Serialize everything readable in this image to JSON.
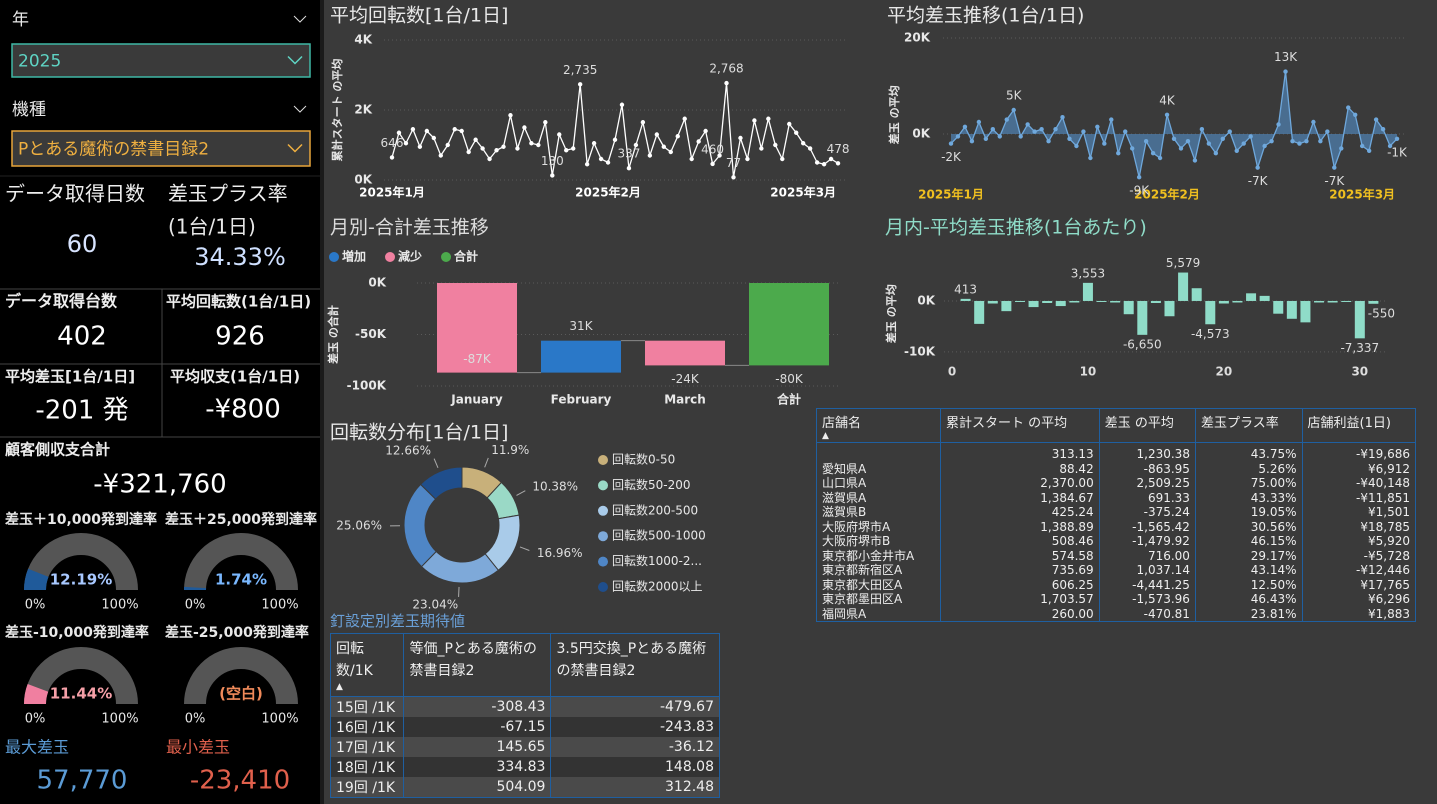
{
  "left_panel": {
    "slicers": [
      {
        "label": "年",
        "value": "2025"
      },
      {
        "label": "機種",
        "value": "Pとある魔術の禁書目録2"
      }
    ],
    "cards": [
      {
        "label": "データ取得日数",
        "value": "60"
      },
      {
        "label": "差玉プラス率",
        "sublabel": "(1台/1日)",
        "value": "34.33%"
      },
      {
        "label": "データ取得台数",
        "value": "402"
      },
      {
        "label": "平均回転数(1台/1日)",
        "value": "926"
      },
      {
        "label": "平均差玉[1台/1日]",
        "value": "-201 発"
      },
      {
        "label": "平均収支(1台/1日)",
        "value": "-¥800"
      },
      {
        "label": "顧客側収支合計",
        "value": "-¥321,760"
      },
      {
        "label": "最大差玉",
        "value": "57,770"
      },
      {
        "label": "最小差玉",
        "value": "-23,410"
      }
    ],
    "gauges": [
      {
        "label": "差玉＋10,000発到達率",
        "value": 12.19,
        "value_label": "12.19%",
        "min": {
          "value": 0,
          "label": "0%"
        },
        "max": {
          "value": 100,
          "label": "100%"
        },
        "color": "#1f5a9a"
      },
      {
        "label": "差玉＋25,000発到達率",
        "value": 1.74,
        "value_label": "1.74%",
        "min": {
          "value": 0,
          "label": "0%"
        },
        "max": {
          "value": 100,
          "label": "100%"
        },
        "color": "#1f5a9a"
      },
      {
        "label": "差玉-10,000発到達率",
        "value": 11.44,
        "value_label": "11.44%",
        "min": {
          "value": 0,
          "label": "0%"
        },
        "max": {
          "value": 100,
          "label": "100%"
        },
        "color": "#f07fa0"
      },
      {
        "label": "差玉-25,000発到達率",
        "value": null,
        "value_label": "(空白)",
        "min": {
          "value": 0,
          "label": "0%"
        },
        "max": {
          "value": 100,
          "label": "100%"
        },
        "color": "#f07fa0"
      }
    ]
  },
  "chart_data": [
    {
      "type": "line",
      "title": "平均回転数[1台/1日]",
      "y_label": "累計スタート の平均",
      "color": "#ffffff",
      "grid": true,
      "x": [
        0,
        1,
        2,
        3,
        4,
        5,
        6,
        7,
        8,
        9,
        10,
        11,
        12,
        13,
        14,
        15,
        16,
        17,
        18,
        19,
        20,
        21,
        22,
        23,
        24,
        25,
        26,
        27,
        28,
        29,
        30,
        31,
        32,
        33,
        34,
        35,
        36,
        37,
        38,
        39,
        40,
        41,
        42,
        43,
        44,
        45,
        46,
        47,
        48,
        49,
        50,
        51,
        52,
        53,
        54,
        55,
        56,
        57,
        58,
        59,
        60,
        61,
        62,
        63,
        64
      ],
      "values": [
        646,
        1350,
        1050,
        1450,
        950,
        1400,
        1200,
        700,
        1000,
        1450,
        1400,
        800,
        1150,
        900,
        600,
        850,
        950,
        1850,
        900,
        1500,
        1050,
        1000,
        1650,
        130,
        1300,
        850,
        900,
        2735,
        450,
        1050,
        600,
        500,
        1150,
        2150,
        337,
        1000,
        1650,
        700,
        1300,
        950,
        800,
        1250,
        1750,
        600,
        1100,
        1400,
        460,
        700,
        2768,
        77,
        1200,
        600,
        1700,
        900,
        1750,
        1000,
        600,
        1600,
        1350,
        1050,
        900,
        500,
        450,
        600,
        478
      ],
      "value_labels": [
        "646",
        null,
        null,
        null,
        null,
        null,
        null,
        null,
        null,
        null,
        null,
        null,
        null,
        null,
        null,
        null,
        null,
        null,
        null,
        null,
        null,
        null,
        null,
        "130",
        null,
        null,
        null,
        "2,735",
        null,
        null,
        null,
        null,
        null,
        null,
        "337",
        null,
        null,
        null,
        null,
        null,
        null,
        null,
        null,
        null,
        null,
        null,
        "460",
        null,
        "2,768",
        "77",
        null,
        null,
        null,
        null,
        null,
        null,
        null,
        null,
        null,
        null,
        null,
        null,
        null,
        null,
        "478"
      ],
      "xlim": [
        0,
        65
      ],
      "xticks": [
        {
          "value": 0,
          "label": "2025年1月"
        },
        {
          "value": 31,
          "label": "2025年2月"
        },
        {
          "value": 59,
          "label": "2025年3月"
        }
      ],
      "ylim": [
        0,
        4000
      ],
      "yticks": [
        {
          "value": 0,
          "label": "0K"
        },
        {
          "value": 2000,
          "label": "2K"
        },
        {
          "value": 4000,
          "label": "4K"
        }
      ]
    },
    {
      "type": "area",
      "title": "平均差玉推移(1台/1日)",
      "y_label": "差玉 の平均",
      "color": "#6fa8dc",
      "fill_color": "#4f7fae",
      "grid": true,
      "x": [
        0,
        1,
        2,
        3,
        4,
        5,
        6,
        7,
        8,
        9,
        10,
        11,
        12,
        13,
        14,
        15,
        16,
        17,
        18,
        19,
        20,
        21,
        22,
        23,
        24,
        25,
        26,
        27,
        28,
        29,
        30,
        31,
        32,
        33,
        34,
        35,
        36,
        37,
        38,
        39,
        40,
        41,
        42,
        43,
        44,
        45,
        46,
        47,
        48,
        49,
        50,
        51,
        52,
        53,
        54,
        55,
        56,
        57,
        58,
        59,
        60,
        61,
        62,
        63,
        64
      ],
      "values": [
        -2000,
        -500,
        1500,
        -1500,
        2500,
        -1000,
        1000,
        -500,
        3000,
        5000,
        -500,
        2000,
        500,
        1000,
        -1500,
        1000,
        3500,
        -1000,
        -2500,
        500,
        -5000,
        1500,
        -2000,
        3000,
        -4000,
        500,
        -3000,
        -9000,
        -1500,
        -4000,
        -5000,
        4000,
        -1000,
        -3000,
        -1500,
        -5500,
        1000,
        -2000,
        -4000,
        -1000,
        500,
        -3500,
        -2000,
        -500,
        -7000,
        -2500,
        -1500,
        2000,
        13000,
        -1500,
        -2000,
        -1500,
        2500,
        -1500,
        500,
        -7000,
        -3000,
        5500,
        4000,
        -2500,
        -3500,
        3000,
        1000,
        -2500,
        -1000
      ],
      "value_labels": [
        "-2K",
        null,
        null,
        null,
        null,
        null,
        null,
        null,
        null,
        "5K",
        null,
        null,
        null,
        null,
        null,
        null,
        null,
        null,
        null,
        null,
        null,
        null,
        null,
        null,
        null,
        null,
        null,
        "-9K",
        null,
        null,
        null,
        "4K",
        null,
        null,
        null,
        null,
        null,
        null,
        null,
        null,
        null,
        null,
        null,
        null,
        "-7K",
        null,
        null,
        null,
        "13K",
        null,
        null,
        null,
        null,
        null,
        null,
        "-7K",
        null,
        null,
        null,
        null,
        null,
        null,
        null,
        null,
        "-1K"
      ],
      "xlim": [
        0,
        65
      ],
      "xticks": [
        {
          "value": 0,
          "label": "2025年1月"
        },
        {
          "value": 31,
          "label": "2025年2月"
        },
        {
          "value": 59,
          "label": "2025年3月"
        }
      ],
      "ylim": [
        -12000,
        20000
      ],
      "yticks": [
        {
          "value": 0,
          "label": "0K"
        },
        {
          "value": 20000,
          "label": "20K"
        }
      ]
    },
    {
      "type": "waterfall",
      "title": "月別-合計差玉推移",
      "y_label": "差玉 の合計",
      "legend": [
        {
          "name": "増加",
          "color": "#2a78c8"
        },
        {
          "name": "減少",
          "color": "#f080a0"
        },
        {
          "name": "合計",
          "color": "#4caa4c"
        }
      ],
      "categories": [
        "January",
        "February",
        "March",
        "合計"
      ],
      "values": [
        -87000,
        31000,
        -24000,
        -80000
      ],
      "value_labels": [
        "-87K",
        "31K",
        "-24K",
        "-80K"
      ],
      "colors": [
        "#f080a0",
        "#2a78c8",
        "#f080a0",
        "#4caa4c"
      ],
      "ylim": [
        -100000,
        0
      ],
      "yticks": [
        {
          "value": 0,
          "label": "0K"
        },
        {
          "value": -50000,
          "label": "-50K"
        },
        {
          "value": -100000,
          "label": "-100K"
        }
      ]
    },
    {
      "type": "bar",
      "title": "月内-平均差玉推移(1台あたり)",
      "y_label": "差玉 の平均",
      "color": "#8fdcc8",
      "grid": true,
      "x": [
        1,
        2,
        3,
        4,
        5,
        6,
        7,
        8,
        9,
        10,
        11,
        12,
        13,
        14,
        15,
        16,
        17,
        18,
        19,
        20,
        21,
        22,
        23,
        24,
        25,
        26,
        27,
        28,
        29,
        30,
        31
      ],
      "values": [
        413,
        -4500,
        -500,
        -2000,
        -200,
        -1200,
        -400,
        -1000,
        -300,
        3553,
        -200,
        -300,
        -2600,
        -6650,
        -400,
        -3000,
        5579,
        2500,
        -4573,
        -500,
        -300,
        1500,
        1000,
        -2500,
        -3500,
        -4200,
        -300,
        -300,
        -200,
        -7337,
        -550
      ],
      "value_labels": [
        "413",
        null,
        null,
        null,
        null,
        null,
        null,
        null,
        null,
        "3,553",
        null,
        null,
        null,
        "-6,650",
        null,
        null,
        "5,579",
        null,
        "-4,573",
        null,
        null,
        null,
        null,
        null,
        null,
        null,
        null,
        null,
        null,
        "-7,337",
        "-550"
      ],
      "xlim": [
        0,
        32
      ],
      "xticks": [
        0,
        10,
        20,
        30
      ],
      "ylim": [
        -11000,
        6000
      ],
      "yticks": [
        {
          "value": 0,
          "label": "0K"
        },
        {
          "value": -10000,
          "label": "-10K"
        }
      ]
    },
    {
      "type": "donut",
      "title": "回転数分布[1台/1日]",
      "categories": [
        "回転数0-50",
        "回転数50-200",
        "回転数200-500",
        "回転数500-1000",
        "回転数1000-2...",
        "回転数2000以上"
      ],
      "values": [
        11.9,
        10.38,
        16.96,
        23.04,
        25.06,
        12.66
      ],
      "value_labels": [
        "11.9%",
        "10.38%",
        "16.96%",
        "23.04%",
        "25.06%",
        "12.66%"
      ],
      "colors": [
        "#c8b07a",
        "#9ad9c6",
        "#a9cbe9",
        "#7ea9d9",
        "#4f86c6",
        "#1f4e8c"
      ]
    }
  ],
  "tables": [
    {
      "title": "釘設定別差玉期待値",
      "columns": [
        "回転数/1K",
        "等価_Pとある魔術の禁書目録2",
        "3.5円交換_Pとある魔術の禁書目録2"
      ],
      "rows": [
        [
          "15回 /1K",
          "-308.43",
          "-479.67"
        ],
        [
          "16回 /1K",
          "-67.15",
          "-243.83"
        ],
        [
          "17回 /1K",
          "145.65",
          "-36.12"
        ],
        [
          "18回 /1K",
          "334.83",
          "148.08"
        ],
        [
          "19回 /1K",
          "504.09",
          "312.48"
        ]
      ]
    },
    {
      "columns": [
        "店舗名",
        "累計スタート の平均",
        "差玉 の平均",
        "差玉プラス率",
        "店舗利益(1日)"
      ],
      "rows": [
        [
          null,
          "313.13",
          "1,230.38",
          "43.75%",
          "-¥19,686"
        ],
        [
          "愛知県A",
          "88.42",
          "-863.95",
          "5.26%",
          "¥6,912"
        ],
        [
          "山口県A",
          "2,370.00",
          "2,509.25",
          "75.00%",
          "-¥40,148"
        ],
        [
          "滋賀県A",
          "1,384.67",
          "691.33",
          "43.33%",
          "-¥11,851"
        ],
        [
          "滋賀県B",
          "425.24",
          "-375.24",
          "19.05%",
          "¥1,501"
        ],
        [
          "大阪府堺市A",
          "1,388.89",
          "-1,565.42",
          "30.56%",
          "¥18,785"
        ],
        [
          "大阪府堺市B",
          "508.46",
          "-1,479.92",
          "46.15%",
          "¥5,920"
        ],
        [
          "東京都小金井市A",
          "574.58",
          "716.00",
          "29.17%",
          "-¥5,728"
        ],
        [
          "東京都新宿区A",
          "735.69",
          "1,037.14",
          "43.14%",
          "-¥12,446"
        ],
        [
          "東京都大田区A",
          "606.25",
          "-4,441.25",
          "12.50%",
          "¥17,765"
        ],
        [
          "東京都墨田区A",
          "1,703.57",
          "-1,573.96",
          "46.43%",
          "¥6,296"
        ],
        [
          "福岡県A",
          "260.00",
          "-470.81",
          "23.81%",
          "¥1,883"
        ]
      ]
    }
  ]
}
